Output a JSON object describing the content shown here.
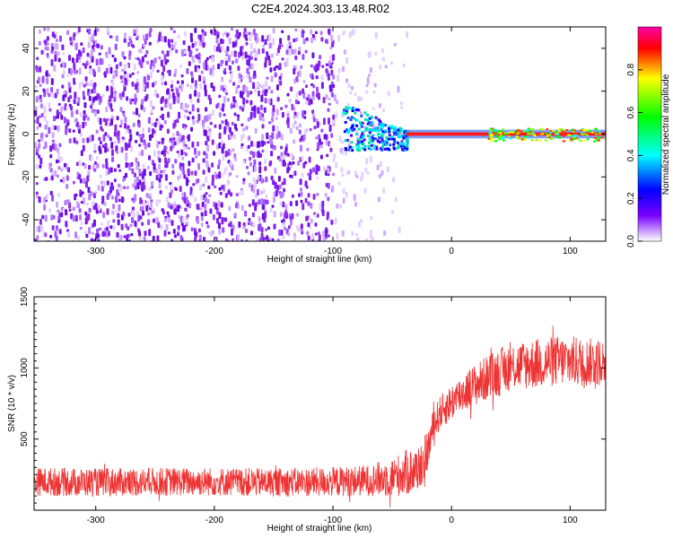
{
  "title": "C2E4.2024.303.13.48.R02",
  "chart_data": [
    {
      "type": "heatmap",
      "title": "C2E4.2024.303.13.48.R02",
      "xlabel": "Height of straight line (km)",
      "ylabel": "Frequency (Hz)",
      "xlim": [
        -352,
        130
      ],
      "ylim": [
        -50,
        50
      ],
      "xticks": [
        -300,
        -200,
        -100,
        0,
        100
      ],
      "yticks": [
        -40,
        -20,
        0,
        20,
        40
      ],
      "colorbar": {
        "label": "Normalized spectral amplitude",
        "range": [
          0,
          1
        ],
        "ticks": [
          "0.0",
          "0.2",
          "0.4",
          "0.6",
          "0.8"
        ],
        "colors": [
          "#ffffff",
          "#7a00ff",
          "#0000ff",
          "#00ffff",
          "#00ff00",
          "#ffff00",
          "#ff0000",
          "#ff00aa"
        ]
      },
      "regions": [
        {
          "x": [
            -352,
            -100
          ],
          "freq": [
            -50,
            50
          ],
          "amplitude": "0.0-0.15 noise",
          "dominant": "purple"
        },
        {
          "x": [
            -100,
            -38
          ],
          "freq": [
            -50,
            50
          ],
          "amplitude": "sparse noise fading",
          "dominant": "light purple"
        },
        {
          "x": [
            -92,
            -40
          ],
          "freq": [
            -8,
            15
          ],
          "amplitude": "0.2-0.5 burst",
          "dominant": "blue-cyan"
        },
        {
          "x": [
            -40,
            130
          ],
          "freq": [
            -2,
            2
          ],
          "amplitude": "0.8-1.0 line at 0 Hz",
          "dominant": "red"
        }
      ]
    },
    {
      "type": "line",
      "xlabel": "Height of straight line (km)",
      "ylabel": "SNR (10 * v/v)",
      "xlim": [
        -352,
        130
      ],
      "ylim": [
        0,
        1500
      ],
      "xticks": [
        -300,
        -200,
        -100,
        0,
        100
      ],
      "yticks": [
        500,
        1000,
        1500
      ],
      "series": [
        {
          "color": "#ee3333",
          "x": [
            -350,
            -300,
            -250,
            -200,
            -150,
            -100,
            -70,
            -50,
            -40,
            -30,
            -25,
            -20,
            -15,
            -10,
            0,
            10,
            20,
            30,
            40,
            50,
            60,
            70,
            80,
            90,
            100,
            110,
            120,
            130
          ],
          "y": [
            200,
            195,
            200,
            200,
            195,
            200,
            210,
            230,
            260,
            280,
            330,
            420,
            600,
            680,
            760,
            830,
            880,
            930,
            970,
            1010,
            1020,
            1030,
            1040,
            1050,
            1050,
            1040,
            1040,
            1040
          ],
          "spread": [
            100,
            100,
            100,
            100,
            100,
            105,
            110,
            140,
            160,
            170,
            160,
            140,
            120,
            120,
            130,
            140,
            150,
            160,
            170,
            170,
            175,
            180,
            180,
            180,
            180,
            175,
            170,
            170
          ]
        }
      ]
    }
  ]
}
